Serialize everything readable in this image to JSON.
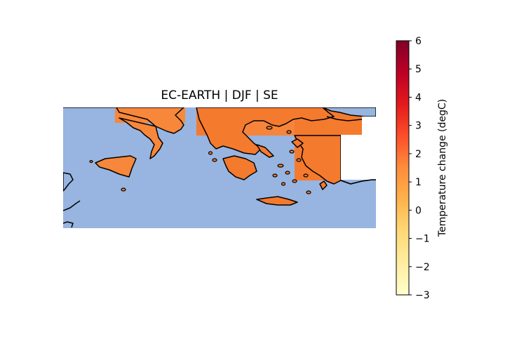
{
  "title": "EC-EARTH | DJF | SE",
  "colorbar": {
    "label": "Temperature change (degC)",
    "min": -3,
    "max": 6,
    "ticks": [
      "6",
      "5",
      "4",
      "3",
      "2",
      "1",
      "0",
      "−1",
      "−2",
      "−3"
    ],
    "colormap": "YlOrRd"
  },
  "colors": {
    "ocean": "#98b4e0",
    "land_fill_value": "#f7873a",
    "cell_dark": "#f47a2e",
    "coastline": "#000000"
  },
  "field_value_degC": 2.3
}
